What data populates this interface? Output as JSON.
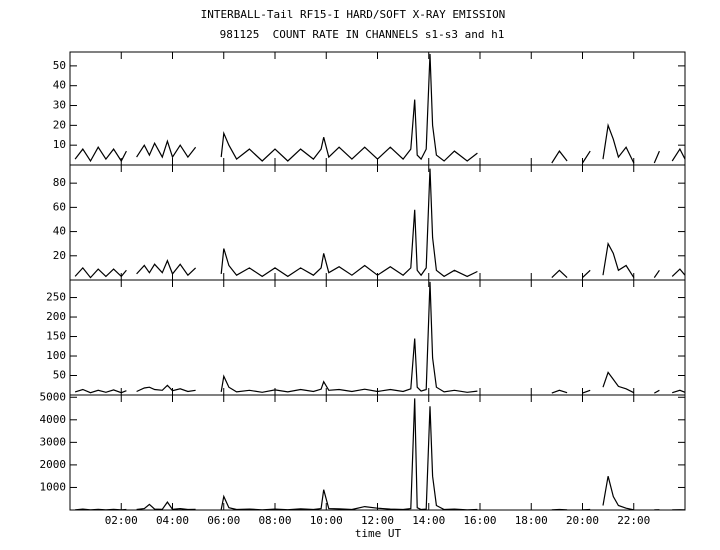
{
  "chart_data": [
    {
      "type": "line",
      "title": "INTERBALL-Tail RF15-I HARD/SOFT X-RAY EMISSION",
      "subtitle": "981125  COUNT RATE IN CHANNELS s1-s3 and h1",
      "color": "#000000",
      "xlim": [
        0,
        24
      ],
      "ylim": [
        0,
        57
      ],
      "yticks": [
        10,
        20,
        30,
        40,
        50
      ],
      "x": [
        0.2,
        0.5,
        0.8,
        1.1,
        1.4,
        1.7,
        2.0,
        2.2,
        2.4,
        2.6,
        2.9,
        3.1,
        3.3,
        3.6,
        3.8,
        4.0,
        4.3,
        4.6,
        4.9,
        5.2,
        5.9,
        6.0,
        6.2,
        6.5,
        7.0,
        7.5,
        8.0,
        8.5,
        9.0,
        9.5,
        9.8,
        9.9,
        10.1,
        10.5,
        11.0,
        11.5,
        12.0,
        12.5,
        13.0,
        13.3,
        13.45,
        13.55,
        13.7,
        13.9,
        14.05,
        14.15,
        14.3,
        14.6,
        15.0,
        15.5,
        15.9,
        17.0,
        18.8,
        19.1,
        19.4,
        19.7,
        20.0,
        20.3,
        20.6,
        20.8,
        21.0,
        21.2,
        21.4,
        21.7,
        22.0,
        22.4,
        22.8,
        23.0,
        23.2,
        23.5,
        23.8,
        24.0
      ],
      "values": [
        3,
        8,
        2,
        9,
        3,
        8,
        2,
        7,
        null,
        4,
        10,
        5,
        11,
        4,
        12,
        4,
        10,
        4,
        9,
        null,
        4,
        16,
        10,
        3,
        8,
        2,
        8,
        2,
        8,
        3,
        8,
        14,
        4,
        9,
        3,
        9,
        3,
        9,
        3,
        8,
        33,
        5,
        3,
        8,
        56,
        20,
        5,
        2,
        7,
        2,
        6,
        null,
        1,
        7,
        2,
        null,
        1,
        7,
        null,
        3,
        20,
        13,
        4,
        9,
        1,
        null,
        1,
        7,
        null,
        2,
        8,
        3
      ]
    },
    {
      "type": "line",
      "color": "#000000",
      "xlim": [
        0,
        24
      ],
      "ylim": [
        0,
        95
      ],
      "yticks": [
        20,
        40,
        60,
        80
      ],
      "x": [
        0.2,
        0.5,
        0.8,
        1.1,
        1.4,
        1.7,
        2.0,
        2.2,
        2.4,
        2.6,
        2.9,
        3.1,
        3.3,
        3.6,
        3.8,
        4.0,
        4.3,
        4.6,
        4.9,
        5.2,
        5.9,
        6.0,
        6.2,
        6.5,
        7.0,
        7.5,
        8.0,
        8.5,
        9.0,
        9.5,
        9.8,
        9.9,
        10.1,
        10.5,
        11.0,
        11.5,
        12.0,
        12.5,
        13.0,
        13.3,
        13.45,
        13.55,
        13.7,
        13.9,
        14.05,
        14.15,
        14.3,
        14.6,
        15.0,
        15.5,
        15.9,
        17.0,
        18.8,
        19.1,
        19.4,
        19.7,
        20.0,
        20.3,
        20.6,
        20.8,
        21.0,
        21.2,
        21.4,
        21.7,
        22.0,
        22.4,
        22.8,
        23.0,
        23.2,
        23.5,
        23.8,
        24.0
      ],
      "values": [
        3,
        10,
        2,
        9,
        3,
        9,
        3,
        8,
        null,
        5,
        12,
        6,
        13,
        6,
        16,
        5,
        13,
        4,
        10,
        null,
        5,
        26,
        12,
        4,
        10,
        3,
        10,
        3,
        10,
        4,
        10,
        22,
        6,
        11,
        4,
        12,
        4,
        11,
        4,
        10,
        58,
        8,
        4,
        10,
        92,
        35,
        8,
        3,
        8,
        3,
        7,
        null,
        2,
        8,
        2,
        null,
        2,
        8,
        null,
        4,
        30,
        22,
        8,
        12,
        2,
        null,
        2,
        8,
        null,
        3,
        9,
        4
      ]
    },
    {
      "type": "line",
      "color": "#000000",
      "xlim": [
        0,
        24
      ],
      "ylim": [
        0,
        295
      ],
      "yticks": [
        50,
        100,
        150,
        200,
        250
      ],
      "x": [
        0.2,
        0.5,
        0.8,
        1.1,
        1.4,
        1.7,
        2.0,
        2.2,
        2.4,
        2.6,
        2.9,
        3.1,
        3.3,
        3.6,
        3.8,
        4.0,
        4.3,
        4.6,
        4.9,
        5.2,
        5.9,
        6.0,
        6.2,
        6.5,
        7.0,
        7.5,
        8.0,
        8.5,
        9.0,
        9.5,
        9.8,
        9.9,
        10.1,
        10.5,
        11.0,
        11.5,
        12.0,
        12.5,
        13.0,
        13.3,
        13.45,
        13.55,
        13.7,
        13.9,
        14.05,
        14.15,
        14.3,
        14.6,
        15.0,
        15.5,
        15.9,
        17.0,
        18.8,
        19.1,
        19.4,
        19.7,
        20.0,
        20.3,
        20.6,
        20.8,
        21.0,
        21.2,
        21.4,
        21.7,
        22.0,
        22.4,
        22.8,
        23.0,
        23.2,
        23.5,
        23.8,
        24.0
      ],
      "values": [
        8,
        14,
        6,
        12,
        7,
        13,
        6,
        11,
        null,
        9,
        18,
        20,
        14,
        12,
        25,
        11,
        16,
        9,
        12,
        null,
        8,
        48,
        20,
        8,
        12,
        7,
        13,
        8,
        14,
        9,
        15,
        34,
        12,
        14,
        9,
        15,
        9,
        14,
        9,
        16,
        145,
        20,
        10,
        14,
        290,
        95,
        20,
        8,
        12,
        7,
        10,
        null,
        5,
        12,
        6,
        null,
        5,
        12,
        null,
        20,
        58,
        40,
        22,
        16,
        6,
        null,
        5,
        12,
        null,
        6,
        12,
        7
      ]
    },
    {
      "type": "line",
      "color": "#000000",
      "xlabel": "time UT",
      "xlim": [
        0,
        24
      ],
      "ylim": [
        0,
        5100
      ],
      "yticks": [
        1000,
        2000,
        3000,
        4000,
        5000
      ],
      "xticks": [
        {
          "value": 2,
          "label": "02:00"
        },
        {
          "value": 4,
          "label": "04:00"
        },
        {
          "value": 6,
          "label": "06:00"
        },
        {
          "value": 8,
          "label": "08:00"
        },
        {
          "value": 10,
          "label": "10:00"
        },
        {
          "value": 12,
          "label": "12:00"
        },
        {
          "value": 14,
          "label": "14:00"
        },
        {
          "value": 16,
          "label": "16:00"
        },
        {
          "value": 18,
          "label": "18:00"
        },
        {
          "value": 20,
          "label": "20:00"
        },
        {
          "value": 22,
          "label": "22:00"
        }
      ],
      "x": [
        0.2,
        0.5,
        0.8,
        1.1,
        1.4,
        1.7,
        2.0,
        2.2,
        2.4,
        2.6,
        2.9,
        3.1,
        3.3,
        3.6,
        3.8,
        4.0,
        4.3,
        4.6,
        4.9,
        5.2,
        5.9,
        6.0,
        6.2,
        6.5,
        7.0,
        7.5,
        8.0,
        8.5,
        9.0,
        9.5,
        9.8,
        9.9,
        10.1,
        10.5,
        11.0,
        11.5,
        12.0,
        12.5,
        13.0,
        13.3,
        13.45,
        13.55,
        13.7,
        13.9,
        14.05,
        14.15,
        14.3,
        14.6,
        15.0,
        15.5,
        15.9,
        17.0,
        18.8,
        19.1,
        19.4,
        19.7,
        20.0,
        20.3,
        20.6,
        20.8,
        21.0,
        21.2,
        21.4,
        21.7,
        22.0,
        22.4,
        22.8,
        23.0,
        23.2,
        23.5,
        23.8,
        24.0
      ],
      "values": [
        10,
        40,
        5,
        30,
        8,
        25,
        5,
        20,
        null,
        20,
        60,
        250,
        40,
        30,
        350,
        30,
        60,
        20,
        30,
        null,
        20,
        600,
        100,
        20,
        40,
        10,
        40,
        15,
        50,
        20,
        60,
        900,
        60,
        50,
        20,
        150,
        80,
        40,
        20,
        60,
        4950,
        100,
        20,
        40,
        4600,
        1500,
        200,
        20,
        40,
        10,
        20,
        null,
        5,
        20,
        5,
        null,
        5,
        20,
        null,
        200,
        1500,
        600,
        200,
        80,
        10,
        null,
        5,
        15,
        null,
        5,
        15,
        5
      ]
    }
  ]
}
